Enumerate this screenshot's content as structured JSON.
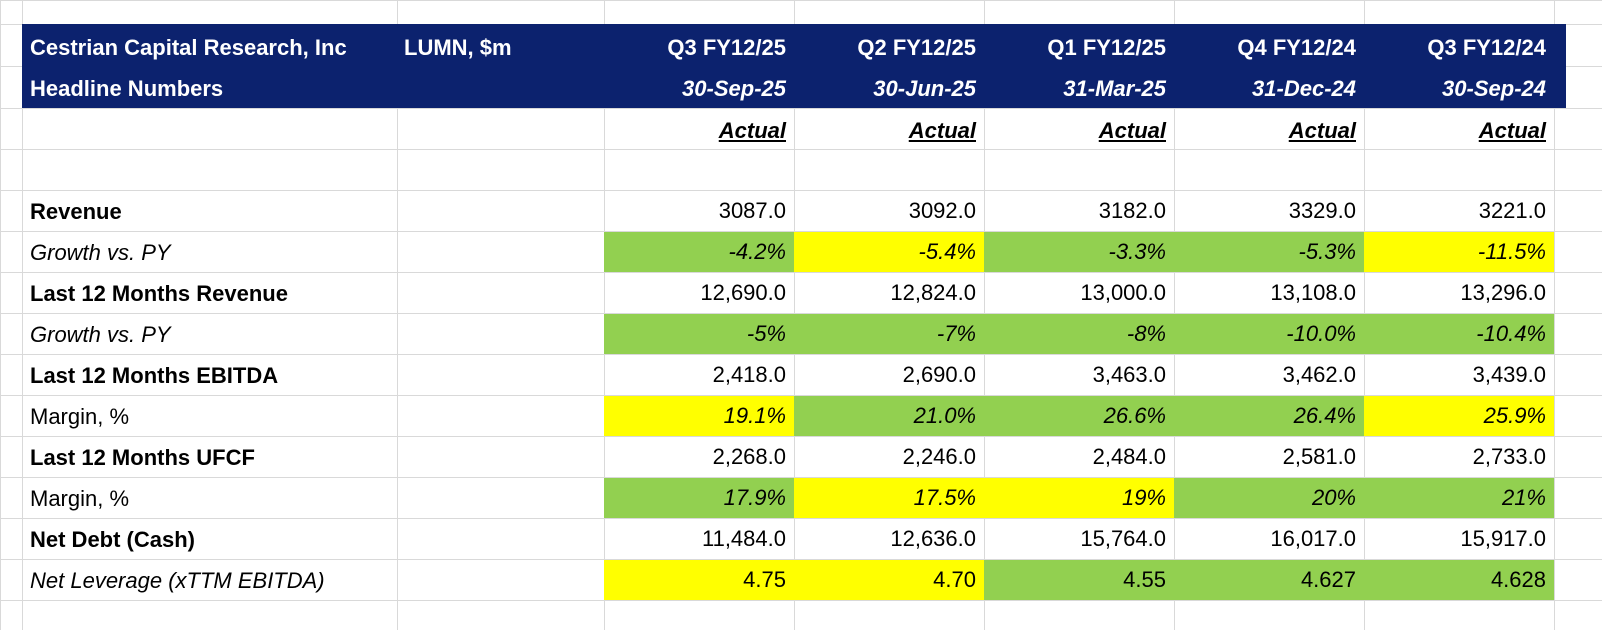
{
  "header": {
    "title": "Cestrian Capital Research, Inc",
    "subtitle": "Headline Numbers",
    "ticker": "LUMN, $m",
    "columns": [
      {
        "quarter": "Q3 FY12/25",
        "date": "30-Sep-25",
        "status": "Actual"
      },
      {
        "quarter": "Q2 FY12/25",
        "date": "30-Jun-25",
        "status": "Actual"
      },
      {
        "quarter": "Q1 FY12/25",
        "date": "31-Mar-25",
        "status": "Actual"
      },
      {
        "quarter": "Q4 FY12/24",
        "date": "31-Dec-24",
        "status": "Actual"
      },
      {
        "quarter": "Q3 FY12/24",
        "date": "30-Sep-24",
        "status": "Actual"
      }
    ]
  },
  "table": {
    "green": "#92d050",
    "yellow": "#ffff00",
    "rows": [
      {
        "label": "Revenue",
        "label_style": "bold",
        "value_style": "normal",
        "values": [
          "3087.0",
          "3092.0",
          "3182.0",
          "3329.0",
          "3221.0"
        ],
        "fills": [
          null,
          null,
          null,
          null,
          null
        ]
      },
      {
        "label": "Growth vs. PY",
        "label_style": "italic",
        "value_style": "italic",
        "values": [
          "-4.2%",
          "-5.4%",
          "-3.3%",
          "-5.3%",
          "-11.5%"
        ],
        "fills": [
          "green",
          "yellow",
          "green",
          "green",
          "yellow"
        ]
      },
      {
        "label": "Last 12 Months Revenue",
        "label_style": "bold",
        "value_style": "normal",
        "values": [
          "12,690.0",
          "12,824.0",
          "13,000.0",
          "13,108.0",
          "13,296.0"
        ],
        "fills": [
          null,
          null,
          null,
          null,
          null
        ]
      },
      {
        "label": "Growth vs. PY",
        "label_style": "italic",
        "value_style": "italic",
        "values": [
          "-5%",
          "-7%",
          "-8%",
          "-10.0%",
          "-10.4%"
        ],
        "fills": [
          "green",
          "green",
          "green",
          "green",
          "green"
        ]
      },
      {
        "label": "Last 12 Months EBITDA",
        "label_style": "bold",
        "value_style": "normal",
        "values": [
          "2,418.0",
          "2,690.0",
          "3,463.0",
          "3,462.0",
          "3,439.0"
        ],
        "fills": [
          null,
          null,
          null,
          null,
          null
        ]
      },
      {
        "label": "Margin, %",
        "label_style": "normal",
        "value_style": "italic",
        "values": [
          "19.1%",
          "21.0%",
          "26.6%",
          "26.4%",
          "25.9%"
        ],
        "fills": [
          "yellow",
          "green",
          "green",
          "green",
          "yellow"
        ]
      },
      {
        "label": "Last 12 Months UFCF",
        "label_style": "bold",
        "value_style": "normal",
        "values": [
          "2,268.0",
          "2,246.0",
          "2,484.0",
          "2,581.0",
          "2,733.0"
        ],
        "fills": [
          null,
          null,
          null,
          null,
          null
        ]
      },
      {
        "label": "Margin, %",
        "label_style": "normal",
        "value_style": "italic",
        "values": [
          "17.9%",
          "17.5%",
          "19%",
          "20%",
          "21%"
        ],
        "fills": [
          "green",
          "yellow",
          "yellow",
          "green",
          "green"
        ]
      },
      {
        "label": "Net Debt (Cash)",
        "label_style": "bold",
        "value_style": "normal",
        "values": [
          "11,484.0",
          "12,636.0",
          "15,764.0",
          "16,017.0",
          "15,917.0"
        ],
        "fills": [
          null,
          null,
          null,
          null,
          null
        ]
      },
      {
        "label": "Net Leverage (xTTM EBITDA)",
        "label_style": "italic",
        "value_style": "normal",
        "values": [
          "4.75",
          "4.70",
          "4.55",
          "4.627",
          "4.628"
        ],
        "fills": [
          "yellow",
          "yellow",
          "green",
          "green",
          "green"
        ]
      }
    ]
  }
}
